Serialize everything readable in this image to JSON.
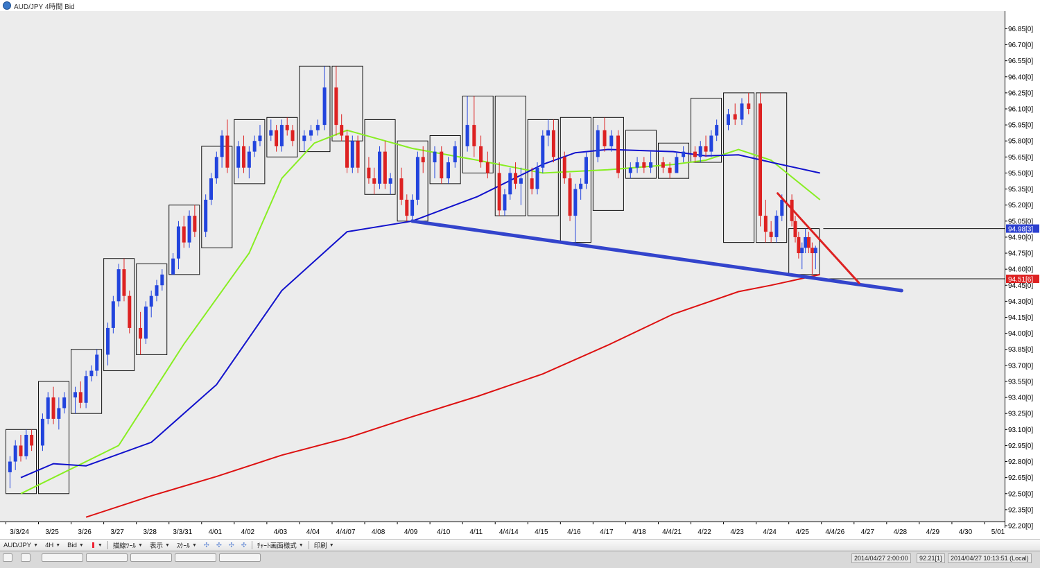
{
  "window": {
    "title": "AUD/JPY 4時間 Bid"
  },
  "toolbar": {
    "symbol": "AUD/JPY",
    "timeframe": "4H",
    "price_type": "Bid",
    "draw_tools": "描線ﾂｰﾙ",
    "display": "表示",
    "scale": "ｽｹｰﾙ",
    "chart_style": "ﾁｬｰﾄ画面様式",
    "print": "印刷"
  },
  "status": {
    "cursor_time": "2014/04/27 2:00:00",
    "cursor_price": "92.21[1]",
    "local_time": "2014/04/27 10:13:51 (Local)"
  },
  "colors": {
    "background": "#ececec",
    "bull_candle": "#2244dd",
    "bear_candle": "#dd2222",
    "sma_short": "#88ee22",
    "sma_mid": "#1111cc",
    "sma_long": "#dd1111",
    "trendline_support": "#3344cc",
    "trendline_resist": "#dd2222",
    "last_price_tag": "#2b3fcf",
    "line_tag": "#dd2222"
  },
  "chart_data": {
    "type": "candlestick",
    "title": "AUD/JPY 4時間 Bid",
    "ylim": [
      92.2,
      96.95
    ],
    "y_ticks": [
      "96.85[0]",
      "96.70[0]",
      "96.55[0]",
      "96.40[0]",
      "96.25[0]",
      "96.10[0]",
      "95.95[0]",
      "95.80[0]",
      "95.65[0]",
      "95.50[0]",
      "95.35[0]",
      "95.20[0]",
      "95.05[0]",
      "94.90[0]",
      "94.75[0]",
      "94.60[0]",
      "94.45[0]",
      "94.30[0]",
      "94.15[0]",
      "94.00[0]",
      "93.85[0]",
      "93.70[0]",
      "93.55[0]",
      "93.40[0]",
      "93.25[0]",
      "93.10[0]",
      "92.95[0]",
      "92.80[0]",
      "92.65[0]",
      "92.50[0]",
      "92.35[0]",
      "92.20[0]"
    ],
    "price_tags": [
      {
        "label": "94.98[3]",
        "price": 94.98,
        "color": "#2b3fcf"
      },
      {
        "label": "94.51[6]",
        "price": 94.51,
        "color": "#dd2222"
      }
    ],
    "x_labels": [
      "3/3/24",
      "3/25",
      "3/26",
      "3/27",
      "3/28",
      "3/3/31",
      "4/01",
      "4/02",
      "4/03",
      "4/04",
      "4/4/07",
      "4/08",
      "4/09",
      "4/10",
      "4/11",
      "4/4/14",
      "4/15",
      "4/16",
      "4/17",
      "4/18",
      "4/4/21",
      "4/22",
      "4/23",
      "4/24",
      "4/25",
      "4/4/26",
      "4/27",
      "4/28",
      "4/29",
      "4/30",
      "5/01"
    ],
    "daily_ranges": [
      {
        "day": "3/24",
        "high": 93.1,
        "low": 92.5
      },
      {
        "day": "3/25",
        "high": 93.55,
        "low": 92.5
      },
      {
        "day": "3/26",
        "high": 93.85,
        "low": 93.25
      },
      {
        "day": "3/27",
        "high": 94.7,
        "low": 93.65
      },
      {
        "day": "3/28",
        "high": 94.65,
        "low": 93.8
      },
      {
        "day": "3/31",
        "high": 95.2,
        "low": 94.55
      },
      {
        "day": "4/01",
        "high": 95.75,
        "low": 94.8
      },
      {
        "day": "4/02",
        "high": 96.0,
        "low": 95.4
      },
      {
        "day": "4/03",
        "high": 96.02,
        "low": 95.65
      },
      {
        "day": "4/04",
        "high": 96.5,
        "low": 95.7
      },
      {
        "day": "4/07",
        "high": 96.5,
        "low": 95.8
      },
      {
        "day": "4/08",
        "high": 96.0,
        "low": 95.3
      },
      {
        "day": "4/09",
        "high": 95.8,
        "low": 95.05
      },
      {
        "day": "4/10",
        "high": 95.85,
        "low": 95.4
      },
      {
        "day": "4/11",
        "high": 96.22,
        "low": 95.5
      },
      {
        "day": "4/14",
        "high": 96.22,
        "low": 95.1
      },
      {
        "day": "4/15",
        "high": 96.0,
        "low": 95.1
      },
      {
        "day": "4/16",
        "high": 96.02,
        "low": 94.85
      },
      {
        "day": "4/17",
        "high": 96.02,
        "low": 95.15
      },
      {
        "day": "4/18",
        "high": 95.9,
        "low": 95.45
      },
      {
        "day": "4/21",
        "high": 95.78,
        "low": 95.45
      },
      {
        "day": "4/22",
        "high": 96.2,
        "low": 95.6
      },
      {
        "day": "4/23",
        "high": 96.25,
        "low": 94.85
      },
      {
        "day": "4/24",
        "high": 96.25,
        "low": 94.85
      },
      {
        "day": "4/25",
        "high": 94.98,
        "low": 94.55
      }
    ],
    "candles": [
      {
        "d": 0,
        "o": 92.7,
        "h": 92.85,
        "l": 92.55,
        "c": 92.8
      },
      {
        "d": 0,
        "o": 92.8,
        "h": 93.0,
        "l": 92.72,
        "c": 92.95
      },
      {
        "d": 0,
        "o": 92.95,
        "h": 93.05,
        "l": 92.8,
        "c": 92.85
      },
      {
        "d": 0,
        "o": 92.85,
        "h": 93.1,
        "l": 92.82,
        "c": 93.05
      },
      {
        "d": 0,
        "o": 93.05,
        "h": 93.1,
        "l": 92.9,
        "c": 92.95
      },
      {
        "d": 1,
        "o": 92.95,
        "h": 93.25,
        "l": 92.9,
        "c": 93.2
      },
      {
        "d": 1,
        "o": 93.2,
        "h": 93.45,
        "l": 93.15,
        "c": 93.4
      },
      {
        "d": 1,
        "o": 93.4,
        "h": 93.5,
        "l": 93.15,
        "c": 93.2
      },
      {
        "d": 1,
        "o": 93.2,
        "h": 93.4,
        "l": 93.1,
        "c": 93.3
      },
      {
        "d": 1,
        "o": 93.3,
        "h": 93.45,
        "l": 93.25,
        "c": 93.4
      },
      {
        "d": 2,
        "o": 93.4,
        "h": 93.5,
        "l": 93.25,
        "c": 93.45
      },
      {
        "d": 2,
        "o": 93.45,
        "h": 93.55,
        "l": 93.3,
        "c": 93.35
      },
      {
        "d": 2,
        "o": 93.35,
        "h": 93.65,
        "l": 93.3,
        "c": 93.6
      },
      {
        "d": 2,
        "o": 93.6,
        "h": 93.7,
        "l": 93.55,
        "c": 93.65
      },
      {
        "d": 2,
        "o": 93.65,
        "h": 93.85,
        "l": 93.6,
        "c": 93.8
      },
      {
        "d": 3,
        "o": 93.8,
        "h": 94.1,
        "l": 93.7,
        "c": 94.05
      },
      {
        "d": 3,
        "o": 94.05,
        "h": 94.35,
        "l": 94.0,
        "c": 94.3
      },
      {
        "d": 3,
        "o": 94.3,
        "h": 94.65,
        "l": 94.25,
        "c": 94.6
      },
      {
        "d": 3,
        "o": 94.6,
        "h": 94.7,
        "l": 94.3,
        "c": 94.35
      },
      {
        "d": 3,
        "o": 94.35,
        "h": 94.4,
        "l": 94.0,
        "c": 94.05
      },
      {
        "d": 4,
        "o": 94.05,
        "h": 94.2,
        "l": 93.8,
        "c": 93.95
      },
      {
        "d": 4,
        "o": 93.95,
        "h": 94.3,
        "l": 93.9,
        "c": 94.25
      },
      {
        "d": 4,
        "o": 94.25,
        "h": 94.4,
        "l": 94.15,
        "c": 94.35
      },
      {
        "d": 4,
        "o": 94.35,
        "h": 94.5,
        "l": 94.3,
        "c": 94.45
      },
      {
        "d": 4,
        "o": 94.45,
        "h": 94.6,
        "l": 94.4,
        "c": 94.55
      },
      {
        "d": 5,
        "o": 94.55,
        "h": 94.75,
        "l": 94.55,
        "c": 94.7
      },
      {
        "d": 5,
        "o": 94.7,
        "h": 95.05,
        "l": 94.6,
        "c": 95.0
      },
      {
        "d": 5,
        "o": 95.0,
        "h": 95.1,
        "l": 94.8,
        "c": 94.85
      },
      {
        "d": 5,
        "o": 94.85,
        "h": 95.15,
        "l": 94.8,
        "c": 95.1
      },
      {
        "d": 5,
        "o": 95.1,
        "h": 95.2,
        "l": 94.9,
        "c": 94.95
      },
      {
        "d": 6,
        "o": 94.95,
        "h": 95.3,
        "l": 94.9,
        "c": 95.25
      },
      {
        "d": 6,
        "o": 95.25,
        "h": 95.5,
        "l": 95.2,
        "c": 95.45
      },
      {
        "d": 6,
        "o": 95.45,
        "h": 95.7,
        "l": 95.4,
        "c": 95.65
      },
      {
        "d": 6,
        "o": 95.65,
        "h": 95.9,
        "l": 95.55,
        "c": 95.85
      },
      {
        "d": 6,
        "o": 95.85,
        "h": 96.0,
        "l": 95.5,
        "c": 95.55
      },
      {
        "d": 7,
        "o": 95.55,
        "h": 95.8,
        "l": 95.45,
        "c": 95.75
      },
      {
        "d": 7,
        "o": 95.75,
        "h": 95.85,
        "l": 95.5,
        "c": 95.55
      },
      {
        "d": 7,
        "o": 95.55,
        "h": 95.75,
        "l": 95.45,
        "c": 95.7
      },
      {
        "d": 7,
        "o": 95.7,
        "h": 95.85,
        "l": 95.65,
        "c": 95.8
      },
      {
        "d": 7,
        "o": 95.8,
        "h": 95.95,
        "l": 95.75,
        "c": 95.85
      },
      {
        "d": 8,
        "o": 95.85,
        "h": 96.0,
        "l": 95.8,
        "c": 95.9
      },
      {
        "d": 8,
        "o": 95.9,
        "h": 95.95,
        "l": 95.7,
        "c": 95.75
      },
      {
        "d": 8,
        "o": 95.75,
        "h": 96.0,
        "l": 95.7,
        "c": 95.95
      },
      {
        "d": 8,
        "o": 95.95,
        "h": 96.02,
        "l": 95.85,
        "c": 95.9
      },
      {
        "d": 8,
        "o": 95.9,
        "h": 95.95,
        "l": 95.75,
        "c": 95.8
      },
      {
        "d": 9,
        "o": 95.8,
        "h": 95.9,
        "l": 95.7,
        "c": 95.85
      },
      {
        "d": 9,
        "o": 95.85,
        "h": 95.95,
        "l": 95.8,
        "c": 95.9
      },
      {
        "d": 9,
        "o": 95.9,
        "h": 96.0,
        "l": 95.85,
        "c": 95.95
      },
      {
        "d": 9,
        "o": 95.95,
        "h": 96.5,
        "l": 95.9,
        "c": 96.3
      },
      {
        "d": 10,
        "o": 96.3,
        "h": 96.5,
        "l": 95.85,
        "c": 95.95
      },
      {
        "d": 10,
        "o": 95.95,
        "h": 96.05,
        "l": 95.8,
        "c": 95.85
      },
      {
        "d": 10,
        "o": 95.85,
        "h": 95.9,
        "l": 95.5,
        "c": 95.55
      },
      {
        "d": 10,
        "o": 95.55,
        "h": 95.85,
        "l": 95.5,
        "c": 95.8
      },
      {
        "d": 10,
        "o": 95.8,
        "h": 95.85,
        "l": 95.5,
        "c": 95.55
      },
      {
        "d": 11,
        "o": 95.55,
        "h": 95.65,
        "l": 95.4,
        "c": 95.45
      },
      {
        "d": 11,
        "o": 95.45,
        "h": 95.55,
        "l": 95.3,
        "c": 95.4
      },
      {
        "d": 11,
        "o": 95.4,
        "h": 95.75,
        "l": 95.35,
        "c": 95.7
      },
      {
        "d": 11,
        "o": 95.7,
        "h": 95.8,
        "l": 95.35,
        "c": 95.4
      },
      {
        "d": 11,
        "o": 95.4,
        "h": 95.5,
        "l": 95.3,
        "c": 95.45
      },
      {
        "d": 12,
        "o": 95.45,
        "h": 95.55,
        "l": 95.2,
        "c": 95.25
      },
      {
        "d": 12,
        "o": 95.25,
        "h": 95.3,
        "l": 95.05,
        "c": 95.1
      },
      {
        "d": 12,
        "o": 95.1,
        "h": 95.3,
        "l": 95.05,
        "c": 95.25
      },
      {
        "d": 12,
        "o": 95.25,
        "h": 95.7,
        "l": 95.2,
        "c": 95.65
      },
      {
        "d": 12,
        "o": 95.65,
        "h": 95.75,
        "l": 95.5,
        "c": 95.6
      },
      {
        "d": 13,
        "o": 95.6,
        "h": 95.75,
        "l": 95.45,
        "c": 95.7
      },
      {
        "d": 13,
        "o": 95.7,
        "h": 95.75,
        "l": 95.4,
        "c": 95.45
      },
      {
        "d": 13,
        "o": 95.45,
        "h": 95.65,
        "l": 95.4,
        "c": 95.6
      },
      {
        "d": 13,
        "o": 95.6,
        "h": 95.8,
        "l": 95.55,
        "c": 95.75
      },
      {
        "d": 14,
        "o": 95.75,
        "h": 96.22,
        "l": 95.7,
        "c": 95.95
      },
      {
        "d": 14,
        "o": 95.95,
        "h": 96.22,
        "l": 95.65,
        "c": 95.75
      },
      {
        "d": 14,
        "o": 95.75,
        "h": 95.85,
        "l": 95.55,
        "c": 95.6
      },
      {
        "d": 14,
        "o": 95.6,
        "h": 95.7,
        "l": 95.45,
        "c": 95.5
      },
      {
        "d": 15,
        "o": 95.5,
        "h": 95.6,
        "l": 95.1,
        "c": 95.15
      },
      {
        "d": 15,
        "o": 95.15,
        "h": 95.35,
        "l": 95.1,
        "c": 95.3
      },
      {
        "d": 15,
        "o": 95.3,
        "h": 95.55,
        "l": 95.25,
        "c": 95.5
      },
      {
        "d": 15,
        "o": 95.5,
        "h": 95.6,
        "l": 95.35,
        "c": 95.4
      },
      {
        "d": 15,
        "o": 95.4,
        "h": 95.55,
        "l": 95.2,
        "c": 95.45
      },
      {
        "d": 16,
        "o": 95.45,
        "h": 95.55,
        "l": 95.3,
        "c": 95.35
      },
      {
        "d": 16,
        "o": 95.35,
        "h": 95.6,
        "l": 95.3,
        "c": 95.55
      },
      {
        "d": 16,
        "o": 95.55,
        "h": 95.9,
        "l": 95.5,
        "c": 95.85
      },
      {
        "d": 16,
        "o": 95.85,
        "h": 96.0,
        "l": 95.75,
        "c": 95.9
      },
      {
        "d": 16,
        "o": 95.9,
        "h": 96.0,
        "l": 95.6,
        "c": 95.65
      },
      {
        "d": 17,
        "o": 95.65,
        "h": 95.7,
        "l": 95.4,
        "c": 95.45
      },
      {
        "d": 17,
        "o": 95.45,
        "h": 95.5,
        "l": 95.05,
        "c": 95.1
      },
      {
        "d": 17,
        "o": 95.1,
        "h": 95.4,
        "l": 94.85,
        "c": 95.35
      },
      {
        "d": 17,
        "o": 95.35,
        "h": 95.45,
        "l": 95.25,
        "c": 95.4
      },
      {
        "d": 17,
        "o": 95.4,
        "h": 95.7,
        "l": 95.35,
        "c": 95.65
      },
      {
        "d": 18,
        "o": 95.65,
        "h": 95.95,
        "l": 95.6,
        "c": 95.9
      },
      {
        "d": 18,
        "o": 95.9,
        "h": 96.02,
        "l": 95.7,
        "c": 95.75
      },
      {
        "d": 18,
        "o": 95.75,
        "h": 95.9,
        "l": 95.7,
        "c": 95.85
      },
      {
        "d": 18,
        "o": 95.85,
        "h": 95.9,
        "l": 95.45,
        "c": 95.5
      },
      {
        "d": 19,
        "o": 95.5,
        "h": 95.6,
        "l": 95.45,
        "c": 95.55
      },
      {
        "d": 19,
        "o": 95.55,
        "h": 95.65,
        "l": 95.5,
        "c": 95.6
      },
      {
        "d": 19,
        "o": 95.6,
        "h": 95.65,
        "l": 95.5,
        "c": 95.55
      },
      {
        "d": 19,
        "o": 95.55,
        "h": 95.7,
        "l": 95.5,
        "c": 95.6
      },
      {
        "d": 20,
        "o": 95.6,
        "h": 95.65,
        "l": 95.5,
        "c": 95.55
      },
      {
        "d": 20,
        "o": 95.55,
        "h": 95.6,
        "l": 95.45,
        "c": 95.5
      },
      {
        "d": 20,
        "o": 95.5,
        "h": 95.7,
        "l": 95.5,
        "c": 95.65
      },
      {
        "d": 20,
        "o": 95.65,
        "h": 95.75,
        "l": 95.6,
        "c": 95.7
      },
      {
        "d": 21,
        "o": 95.7,
        "h": 95.75,
        "l": 95.6,
        "c": 95.65
      },
      {
        "d": 21,
        "o": 95.65,
        "h": 95.8,
        "l": 95.6,
        "c": 95.75
      },
      {
        "d": 21,
        "o": 95.75,
        "h": 95.85,
        "l": 95.65,
        "c": 95.7
      },
      {
        "d": 21,
        "o": 95.7,
        "h": 95.9,
        "l": 95.65,
        "c": 95.85
      },
      {
        "d": 21,
        "o": 95.85,
        "h": 96.0,
        "l": 95.8,
        "c": 95.95
      },
      {
        "d": 22,
        "o": 95.95,
        "h": 96.1,
        "l": 95.9,
        "c": 96.05
      },
      {
        "d": 22,
        "o": 96.05,
        "h": 96.15,
        "l": 95.95,
        "c": 96.0
      },
      {
        "d": 22,
        "o": 96.0,
        "h": 96.2,
        "l": 95.95,
        "c": 96.15
      },
      {
        "d": 22,
        "o": 96.15,
        "h": 96.25,
        "l": 96.05,
        "c": 96.1
      },
      {
        "d": 23,
        "o": 96.15,
        "h": 96.25,
        "l": 95.0,
        "c": 95.1
      },
      {
        "d": 23,
        "o": 95.1,
        "h": 95.25,
        "l": 94.85,
        "c": 94.95
      },
      {
        "d": 23,
        "o": 94.95,
        "h": 95.05,
        "l": 94.85,
        "c": 94.9
      },
      {
        "d": 23,
        "o": 94.9,
        "h": 95.15,
        "l": 94.85,
        "c": 95.1
      },
      {
        "d": 23,
        "o": 95.1,
        "h": 95.3,
        "l": 95.05,
        "c": 95.25
      },
      {
        "d": 24,
        "o": 95.25,
        "h": 95.3,
        "l": 95.0,
        "c": 95.05
      },
      {
        "d": 24,
        "o": 95.05,
        "h": 95.1,
        "l": 94.85,
        "c": 94.9
      },
      {
        "d": 24,
        "o": 94.9,
        "h": 94.95,
        "l": 94.7,
        "c": 94.75
      },
      {
        "d": 24,
        "o": 94.75,
        "h": 94.85,
        "l": 94.6,
        "c": 94.8
      },
      {
        "d": 24,
        "o": 94.8,
        "h": 94.98,
        "l": 94.75,
        "c": 94.9
      },
      {
        "d": 24,
        "o": 94.9,
        "h": 94.95,
        "l": 94.75,
        "c": 94.8
      },
      {
        "d": 24,
        "o": 94.8,
        "h": 94.85,
        "l": 94.55,
        "c": 94.75
      },
      {
        "d": 24,
        "o": 94.75,
        "h": 94.82,
        "l": 94.6,
        "c": 94.8
      }
    ],
    "moving_averages": [
      {
        "name": "short",
        "color": "#88ee22",
        "x": [
          0,
          3,
          5,
          7,
          8,
          9,
          10,
          12,
          14,
          16,
          18,
          20,
          21,
          22,
          23,
          24.5
        ],
        "y": [
          92.5,
          92.95,
          93.9,
          94.75,
          95.45,
          95.78,
          95.9,
          95.73,
          95.62,
          95.5,
          95.53,
          95.58,
          95.62,
          95.72,
          95.62,
          95.25
        ]
      },
      {
        "name": "mid",
        "color": "#1111cc",
        "x": [
          0,
          1,
          2,
          4,
          6,
          8,
          10,
          12,
          14,
          16,
          17,
          18,
          20,
          21,
          22,
          23,
          24.5
        ],
        "y": [
          92.65,
          92.78,
          92.76,
          92.98,
          93.52,
          94.4,
          94.95,
          95.05,
          95.28,
          95.58,
          95.69,
          95.72,
          95.7,
          95.66,
          95.67,
          95.6,
          95.5
        ]
      },
      {
        "name": "long",
        "color": "#dd1111",
        "x": [
          2,
          4,
          6,
          8,
          10,
          12,
          14,
          16,
          18,
          20,
          22,
          23,
          24.5
        ],
        "y": [
          92.28,
          92.48,
          92.66,
          92.86,
          93.02,
          93.22,
          93.41,
          93.62,
          93.89,
          94.18,
          94.39,
          94.45,
          94.55
        ]
      }
    ],
    "trendlines": [
      {
        "color": "#3344cc",
        "width": 5,
        "x1": 12.0,
        "y1": 95.05,
        "x2": 27.0,
        "y2": 94.4
      },
      {
        "color": "#dd2222",
        "width": 3,
        "x1": 23.2,
        "y1": 95.31,
        "x2": 25.7,
        "y2": 94.47
      }
    ],
    "horizontal_lines": [
      {
        "price": 94.98,
        "x_start": 24.6
      },
      {
        "price": 94.51,
        "x_start": 24.6
      }
    ],
    "grid": false
  }
}
